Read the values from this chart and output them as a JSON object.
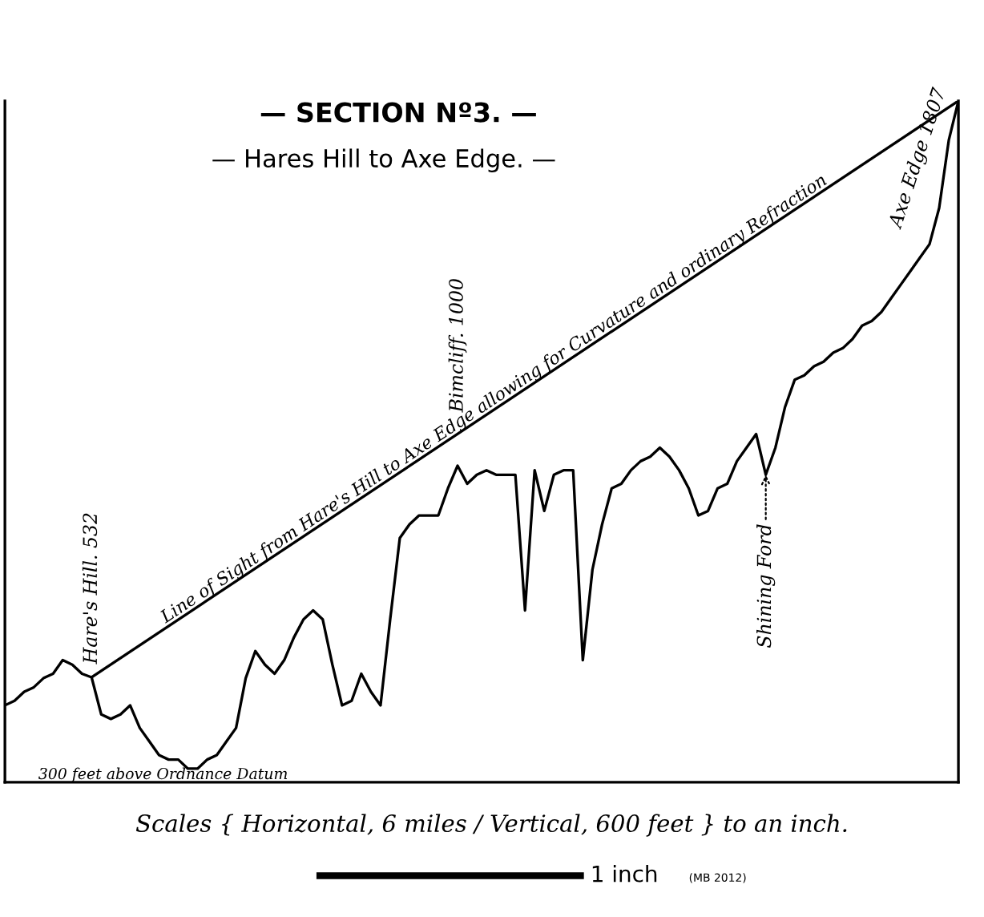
{
  "chart_data": {
    "type": "line",
    "title": "— SECTION Nº3. —",
    "subtitle": "— Hares Hill to Axe Edge. —",
    "ylim": [
      300,
      1807
    ],
    "categories": [
      null,
      null,
      null,
      null,
      null,
      null,
      null,
      null,
      null,
      null,
      null,
      null,
      null,
      null,
      null,
      null,
      null,
      null,
      null,
      null,
      null,
      null,
      null,
      null,
      null,
      null,
      null,
      null,
      null,
      null,
      null,
      null,
      null,
      null,
      null,
      null,
      null,
      null,
      null,
      null,
      null,
      null,
      null,
      null,
      null,
      null,
      null,
      null,
      null,
      null,
      null,
      null,
      null,
      null,
      null,
      null,
      null,
      null,
      null,
      null,
      null,
      null,
      null,
      null,
      null,
      null,
      null,
      null,
      null,
      null,
      null,
      null,
      null,
      null,
      null,
      null,
      null,
      null,
      null,
      null,
      null,
      null,
      null,
      null,
      null,
      null,
      null,
      null,
      null,
      null,
      null,
      null,
      null,
      null,
      null,
      null,
      null,
      null,
      null,
      null
    ],
    "series": [
      {
        "color": "#000000",
        "values": [
          470,
          480,
          500,
          510,
          530,
          540,
          570,
          560,
          540,
          532,
          450,
          440,
          450,
          470,
          420,
          390,
          360,
          350,
          350,
          330,
          330,
          350,
          360,
          390,
          420,
          530,
          590,
          560,
          540,
          570,
          620,
          660,
          680,
          660,
          560,
          470,
          480,
          540,
          500,
          470,
          660,
          840,
          870,
          890,
          890,
          890,
          950,
          1000,
          960,
          980,
          990,
          980,
          980,
          980,
          680,
          990,
          900,
          980,
          990,
          990,
          570,
          770,
          870,
          950,
          960,
          990,
          1010,
          1020,
          1040,
          1020,
          990,
          950,
          890,
          900,
          950,
          960,
          1010,
          1040,
          1070,
          980,
          1040,
          1130,
          1190,
          1200,
          1220,
          1230,
          1250,
          1260,
          1280,
          1310,
          1320,
          1340,
          1370,
          1400,
          1430,
          1460,
          1490,
          1570,
          1720,
          1807
        ],
        "value_labels": [
          null,
          null,
          null,
          null,
          null,
          null,
          null,
          null,
          null,
          "Hare's Hill. 532",
          null,
          null,
          null,
          null,
          null,
          null,
          null,
          null,
          null,
          null,
          null,
          null,
          null,
          null,
          null,
          null,
          null,
          null,
          null,
          null,
          null,
          null,
          null,
          null,
          null,
          null,
          null,
          null,
          null,
          null,
          null,
          null,
          null,
          null,
          null,
          null,
          null,
          "Bimcliff. 1000",
          null,
          null,
          null,
          null,
          null,
          null,
          null,
          null,
          null,
          null,
          null,
          null,
          null,
          null,
          null,
          null,
          null,
          null,
          null,
          null,
          null,
          null,
          null,
          null,
          null,
          null,
          null,
          null,
          null,
          null,
          null,
          "Shining Ford",
          null,
          null,
          null,
          null,
          null,
          null,
          null,
          null,
          null,
          null,
          null,
          null,
          null,
          null,
          null,
          null,
          null,
          null,
          null,
          "Axe Edge 1807"
        ]
      },
      {
        "name": "Line of Sight from Hare's Hill to Axe Edge allowing for Curvature and ordinary Refraction",
        "color": "#000000",
        "values": [
          null,
          null,
          null,
          null,
          null,
          null,
          null,
          null,
          null,
          532,
          null,
          null,
          null,
          null,
          null,
          null,
          null,
          null,
          null,
          null,
          null,
          null,
          null,
          null,
          null,
          null,
          null,
          null,
          null,
          null,
          null,
          null,
          null,
          null,
          null,
          null,
          null,
          null,
          null,
          null,
          null,
          null,
          null,
          null,
          null,
          null,
          null,
          null,
          null,
          null,
          null,
          null,
          null,
          null,
          null,
          null,
          null,
          null,
          null,
          null,
          null,
          null,
          null,
          null,
          null,
          null,
          null,
          null,
          null,
          null,
          null,
          null,
          null,
          null,
          null,
          null,
          null,
          null,
          null,
          null,
          null,
          null,
          null,
          null,
          null,
          null,
          null,
          null,
          null,
          null,
          null,
          null,
          null,
          null,
          null,
          null,
          null,
          null,
          null,
          1807
        ]
      }
    ],
    "annotations": [
      "300 feet above Ordnance Datum",
      "Scales { Horizontal, 6 miles / Vertical, 600 feet } to an inch.",
      "1 inch",
      "(MB 2012)"
    ]
  }
}
